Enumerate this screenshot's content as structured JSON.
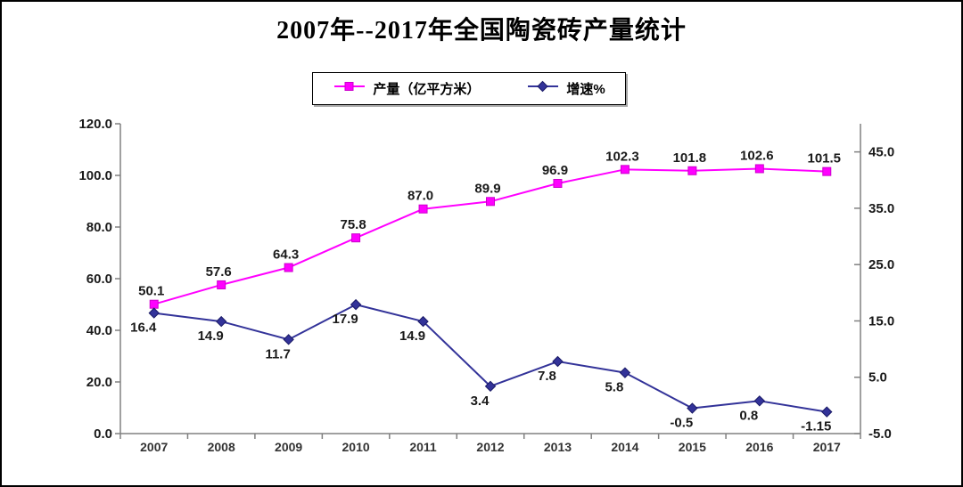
{
  "page": {
    "title": "2007年--2017年全国陶瓷砖产量统计"
  },
  "legend": {
    "items": [
      {
        "label": "产量（亿平方米）",
        "color": "#FF00FF",
        "marker": "square"
      },
      {
        "label": "增速%",
        "color": "#333399",
        "marker": "diamond"
      }
    ]
  },
  "chart_data": {
    "type": "line",
    "title": "2007年--2017年全国陶瓷砖产量统计",
    "categories": [
      "2007",
      "2008",
      "2009",
      "2010",
      "2011",
      "2012",
      "2013",
      "2014",
      "2015",
      "2016",
      "2017"
    ],
    "series": [
      {
        "name": "产量（亿平方米）",
        "axis": "left",
        "color": "#FF00FF",
        "marker": "square",
        "values": [
          50.1,
          57.6,
          64.3,
          75.8,
          87.0,
          89.9,
          96.9,
          102.3,
          101.8,
          102.6,
          101.5
        ],
        "labels": [
          "50.1",
          "57.6",
          "64.3",
          "75.8",
          "87.0",
          "89.9",
          "96.9",
          "102.3",
          "101.8",
          "102.6",
          "101.5"
        ]
      },
      {
        "name": "增速%",
        "axis": "right",
        "color": "#333399",
        "marker": "diamond",
        "values": [
          16.4,
          14.9,
          11.7,
          17.9,
          14.9,
          3.4,
          7.8,
          5.8,
          -0.5,
          0.8,
          -1.15
        ],
        "labels": [
          "16.4",
          "14.9",
          "11.7",
          "17.9",
          "14.9",
          "3.4",
          "7.8",
          "5.8",
          "-0.5",
          "0.8",
          "-1.15"
        ]
      }
    ],
    "left_axis": {
      "min": 0,
      "max": 120,
      "step": 20,
      "tick_labels": [
        "0.0",
        "20.0",
        "40.0",
        "60.0",
        "80.0",
        "100.0",
        "120.0"
      ]
    },
    "right_axis": {
      "min": -5,
      "max": 50,
      "step": 10,
      "tick_labels": [
        "-5.0",
        "5.0",
        "15.0",
        "25.0",
        "35.0",
        "45.0"
      ]
    },
    "grid": false,
    "legend_position": "top",
    "axis_color": "#808080"
  }
}
